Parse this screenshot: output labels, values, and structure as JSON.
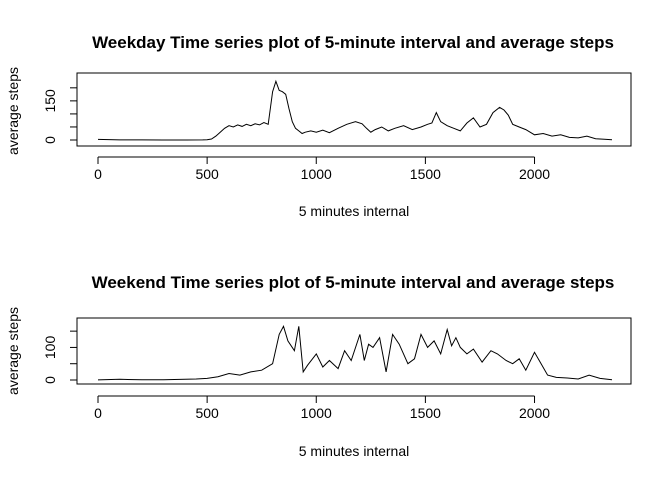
{
  "chart_data": [
    {
      "type": "line",
      "title": "Weekday Time series plot of 5-minute interval and average steps",
      "xlabel": "5 minutes internal",
      "ylabel": "average steps",
      "x_ticks": [
        0,
        500,
        1000,
        1500,
        2000
      ],
      "y_ticks": [
        0,
        50,
        100,
        150,
        200
      ],
      "y_tick_labels": [
        "0",
        "",
        "",
        "150",
        ""
      ],
      "xlim": [
        0,
        2355
      ],
      "ylim": [
        0,
        230
      ],
      "grid": false,
      "legend": "none",
      "color": "#000000",
      "x": [
        0,
        100,
        200,
        300,
        400,
        480,
        500,
        520,
        540,
        560,
        580,
        600,
        620,
        640,
        660,
        680,
        700,
        720,
        740,
        760,
        780,
        800,
        815,
        830,
        845,
        860,
        875,
        890,
        905,
        920,
        935,
        950,
        975,
        1000,
        1030,
        1060,
        1100,
        1140,
        1180,
        1210,
        1230,
        1250,
        1270,
        1300,
        1330,
        1360,
        1400,
        1440,
        1480,
        1510,
        1530,
        1550,
        1570,
        1600,
        1630,
        1660,
        1690,
        1720,
        1750,
        1780,
        1810,
        1840,
        1860,
        1880,
        1900,
        1930,
        1960,
        2000,
        2040,
        2080,
        2120,
        2160,
        2200,
        2240,
        2280,
        2320,
        2355
      ],
      "values": [
        2.3,
        0.5,
        0.4,
        0.1,
        0.0,
        0.3,
        1.0,
        4,
        15,
        30,
        45,
        55,
        50,
        58,
        52,
        60,
        55,
        62,
        58,
        67,
        60,
        185,
        225,
        190,
        185,
        175,
        120,
        70,
        45,
        35,
        25,
        30,
        35,
        30,
        38,
        28,
        45,
        60,
        70,
        62,
        45,
        30,
        40,
        50,
        35,
        45,
        55,
        40,
        50,
        60,
        65,
        105,
        70,
        55,
        45,
        35,
        65,
        85,
        50,
        60,
        105,
        125,
        115,
        95,
        60,
        50,
        40,
        20,
        25,
        15,
        20,
        10,
        8,
        15,
        5,
        3,
        1
      ]
    },
    {
      "type": "line",
      "title": "Weekend Time series plot of 5-minute interval and average steps",
      "xlabel": "5 minutes internal",
      "ylabel": "average steps",
      "x_ticks": [
        0,
        500,
        1000,
        1500,
        2000
      ],
      "y_ticks": [
        0,
        50,
        100,
        150
      ],
      "y_tick_labels": [
        "0",
        "",
        "100",
        ""
      ],
      "xlim": [
        0,
        2355
      ],
      "ylim": [
        0,
        175
      ],
      "grid": false,
      "legend": "none",
      "color": "#000000",
      "x": [
        0,
        100,
        200,
        300,
        400,
        450,
        500,
        550,
        600,
        650,
        700,
        750,
        800,
        830,
        850,
        870,
        900,
        920,
        940,
        960,
        1000,
        1030,
        1060,
        1100,
        1130,
        1160,
        1200,
        1220,
        1240,
        1260,
        1290,
        1320,
        1350,
        1380,
        1420,
        1450,
        1480,
        1510,
        1540,
        1570,
        1600,
        1620,
        1640,
        1660,
        1690,
        1720,
        1760,
        1800,
        1830,
        1870,
        1900,
        1930,
        1960,
        2000,
        2030,
        2060,
        2100,
        2150,
        2200,
        2250,
        2300,
        2355
      ],
      "values": [
        0.2,
        2,
        0.5,
        1,
        2,
        3,
        5,
        10,
        20,
        15,
        25,
        30,
        50,
        140,
        165,
        120,
        90,
        165,
        25,
        45,
        80,
        40,
        60,
        35,
        90,
        60,
        140,
        60,
        110,
        100,
        130,
        25,
        140,
        110,
        50,
        65,
        140,
        100,
        120,
        80,
        155,
        105,
        130,
        100,
        80,
        95,
        55,
        90,
        80,
        60,
        50,
        65,
        30,
        85,
        50,
        15,
        8,
        6,
        3,
        15,
        5,
        0.5
      ]
    }
  ]
}
